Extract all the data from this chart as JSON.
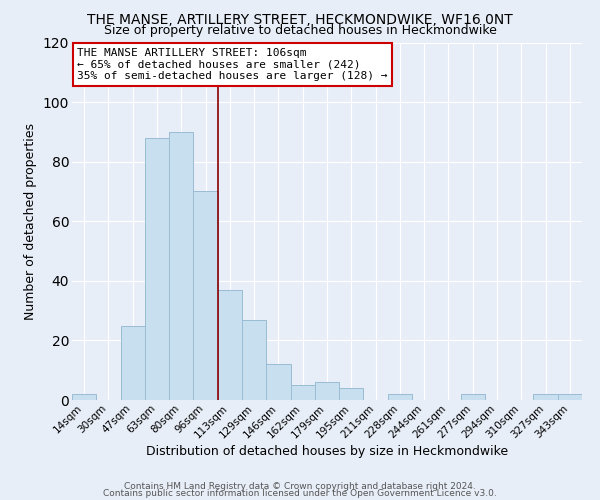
{
  "title": "THE MANSE, ARTILLERY STREET, HECKMONDWIKE, WF16 0NT",
  "subtitle": "Size of property relative to detached houses in Heckmondwike",
  "xlabel": "Distribution of detached houses by size in Heckmondwike",
  "ylabel": "Number of detached properties",
  "bar_color": "#c8dff0",
  "bar_edge_color": "#9abcd4",
  "bin_labels": [
    "14sqm",
    "30sqm",
    "47sqm",
    "63sqm",
    "80sqm",
    "96sqm",
    "113sqm",
    "129sqm",
    "146sqm",
    "162sqm",
    "179sqm",
    "195sqm",
    "211sqm",
    "228sqm",
    "244sqm",
    "261sqm",
    "277sqm",
    "294sqm",
    "310sqm",
    "327sqm",
    "343sqm"
  ],
  "bar_heights": [
    2,
    0,
    25,
    88,
    90,
    70,
    37,
    27,
    12,
    5,
    6,
    4,
    0,
    2,
    0,
    0,
    2,
    0,
    0,
    2,
    2
  ],
  "ylim": [
    0,
    120
  ],
  "yticks": [
    0,
    20,
    40,
    60,
    80,
    100,
    120
  ],
  "vline_x_index": 5.5,
  "vline_color": "#8b0000",
  "annotation_title": "THE MANSE ARTILLERY STREET: 106sqm",
  "annotation_line1": "← 65% of detached houses are smaller (242)",
  "annotation_line2": "35% of semi-detached houses are larger (128) →",
  "annotation_box_color": "#ffffff",
  "annotation_box_edge": "#cc0000",
  "footer1": "Contains HM Land Registry data © Crown copyright and database right 2024.",
  "footer2": "Contains public sector information licensed under the Open Government Licence v3.0.",
  "background_color": "#e8eef8",
  "grid_color": "#ffffff",
  "title_fontsize": 10,
  "subtitle_fontsize": 9,
  "xlabel_fontsize": 9,
  "ylabel_fontsize": 9
}
